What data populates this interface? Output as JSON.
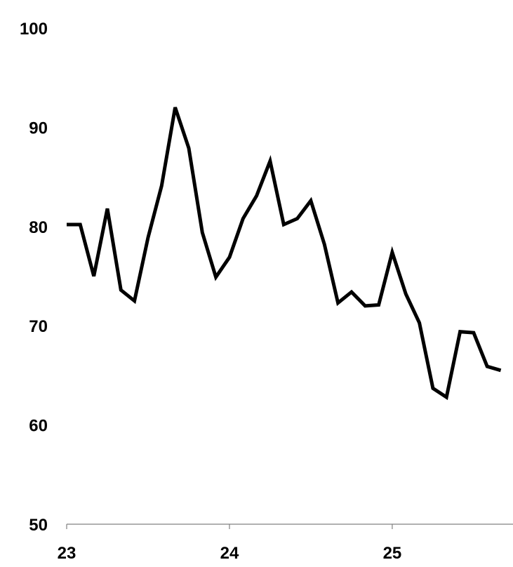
{
  "chart_data": {
    "type": "line",
    "title": "",
    "xlabel": "",
    "ylabel": "",
    "ylim": [
      50,
      100
    ],
    "y_ticks": [
      50,
      60,
      70,
      80,
      90,
      100
    ],
    "y_tick_labels": [
      "50",
      "60",
      "70",
      "80",
      "90",
      "100"
    ],
    "x_ticks": [
      0,
      12,
      24
    ],
    "x_tick_labels": [
      "23",
      "24",
      "25"
    ],
    "xlim": [
      0,
      32
    ],
    "grid": false,
    "legend": "none",
    "line_color": "#000000",
    "axis_color": "#808080",
    "series": [
      {
        "x": [
          0,
          1,
          2,
          3,
          4,
          5,
          6,
          7,
          8,
          9,
          10,
          11,
          12,
          13,
          14,
          15,
          16,
          17,
          18,
          19,
          20,
          21,
          22,
          23,
          24,
          25,
          26,
          27,
          28,
          29,
          30,
          31,
          32
        ],
        "values": [
          80.2,
          80.2,
          75.0,
          81.8,
          73.6,
          72.5,
          78.9,
          84.1,
          92.0,
          87.9,
          79.4,
          74.9,
          76.9,
          80.8,
          83.1,
          86.6,
          80.2,
          80.8,
          82.6,
          78.2,
          72.3,
          73.4,
          72.0,
          72.1,
          77.4,
          73.2,
          70.3,
          63.7,
          62.8,
          69.4,
          69.3,
          65.9,
          65.5
        ]
      }
    ]
  }
}
